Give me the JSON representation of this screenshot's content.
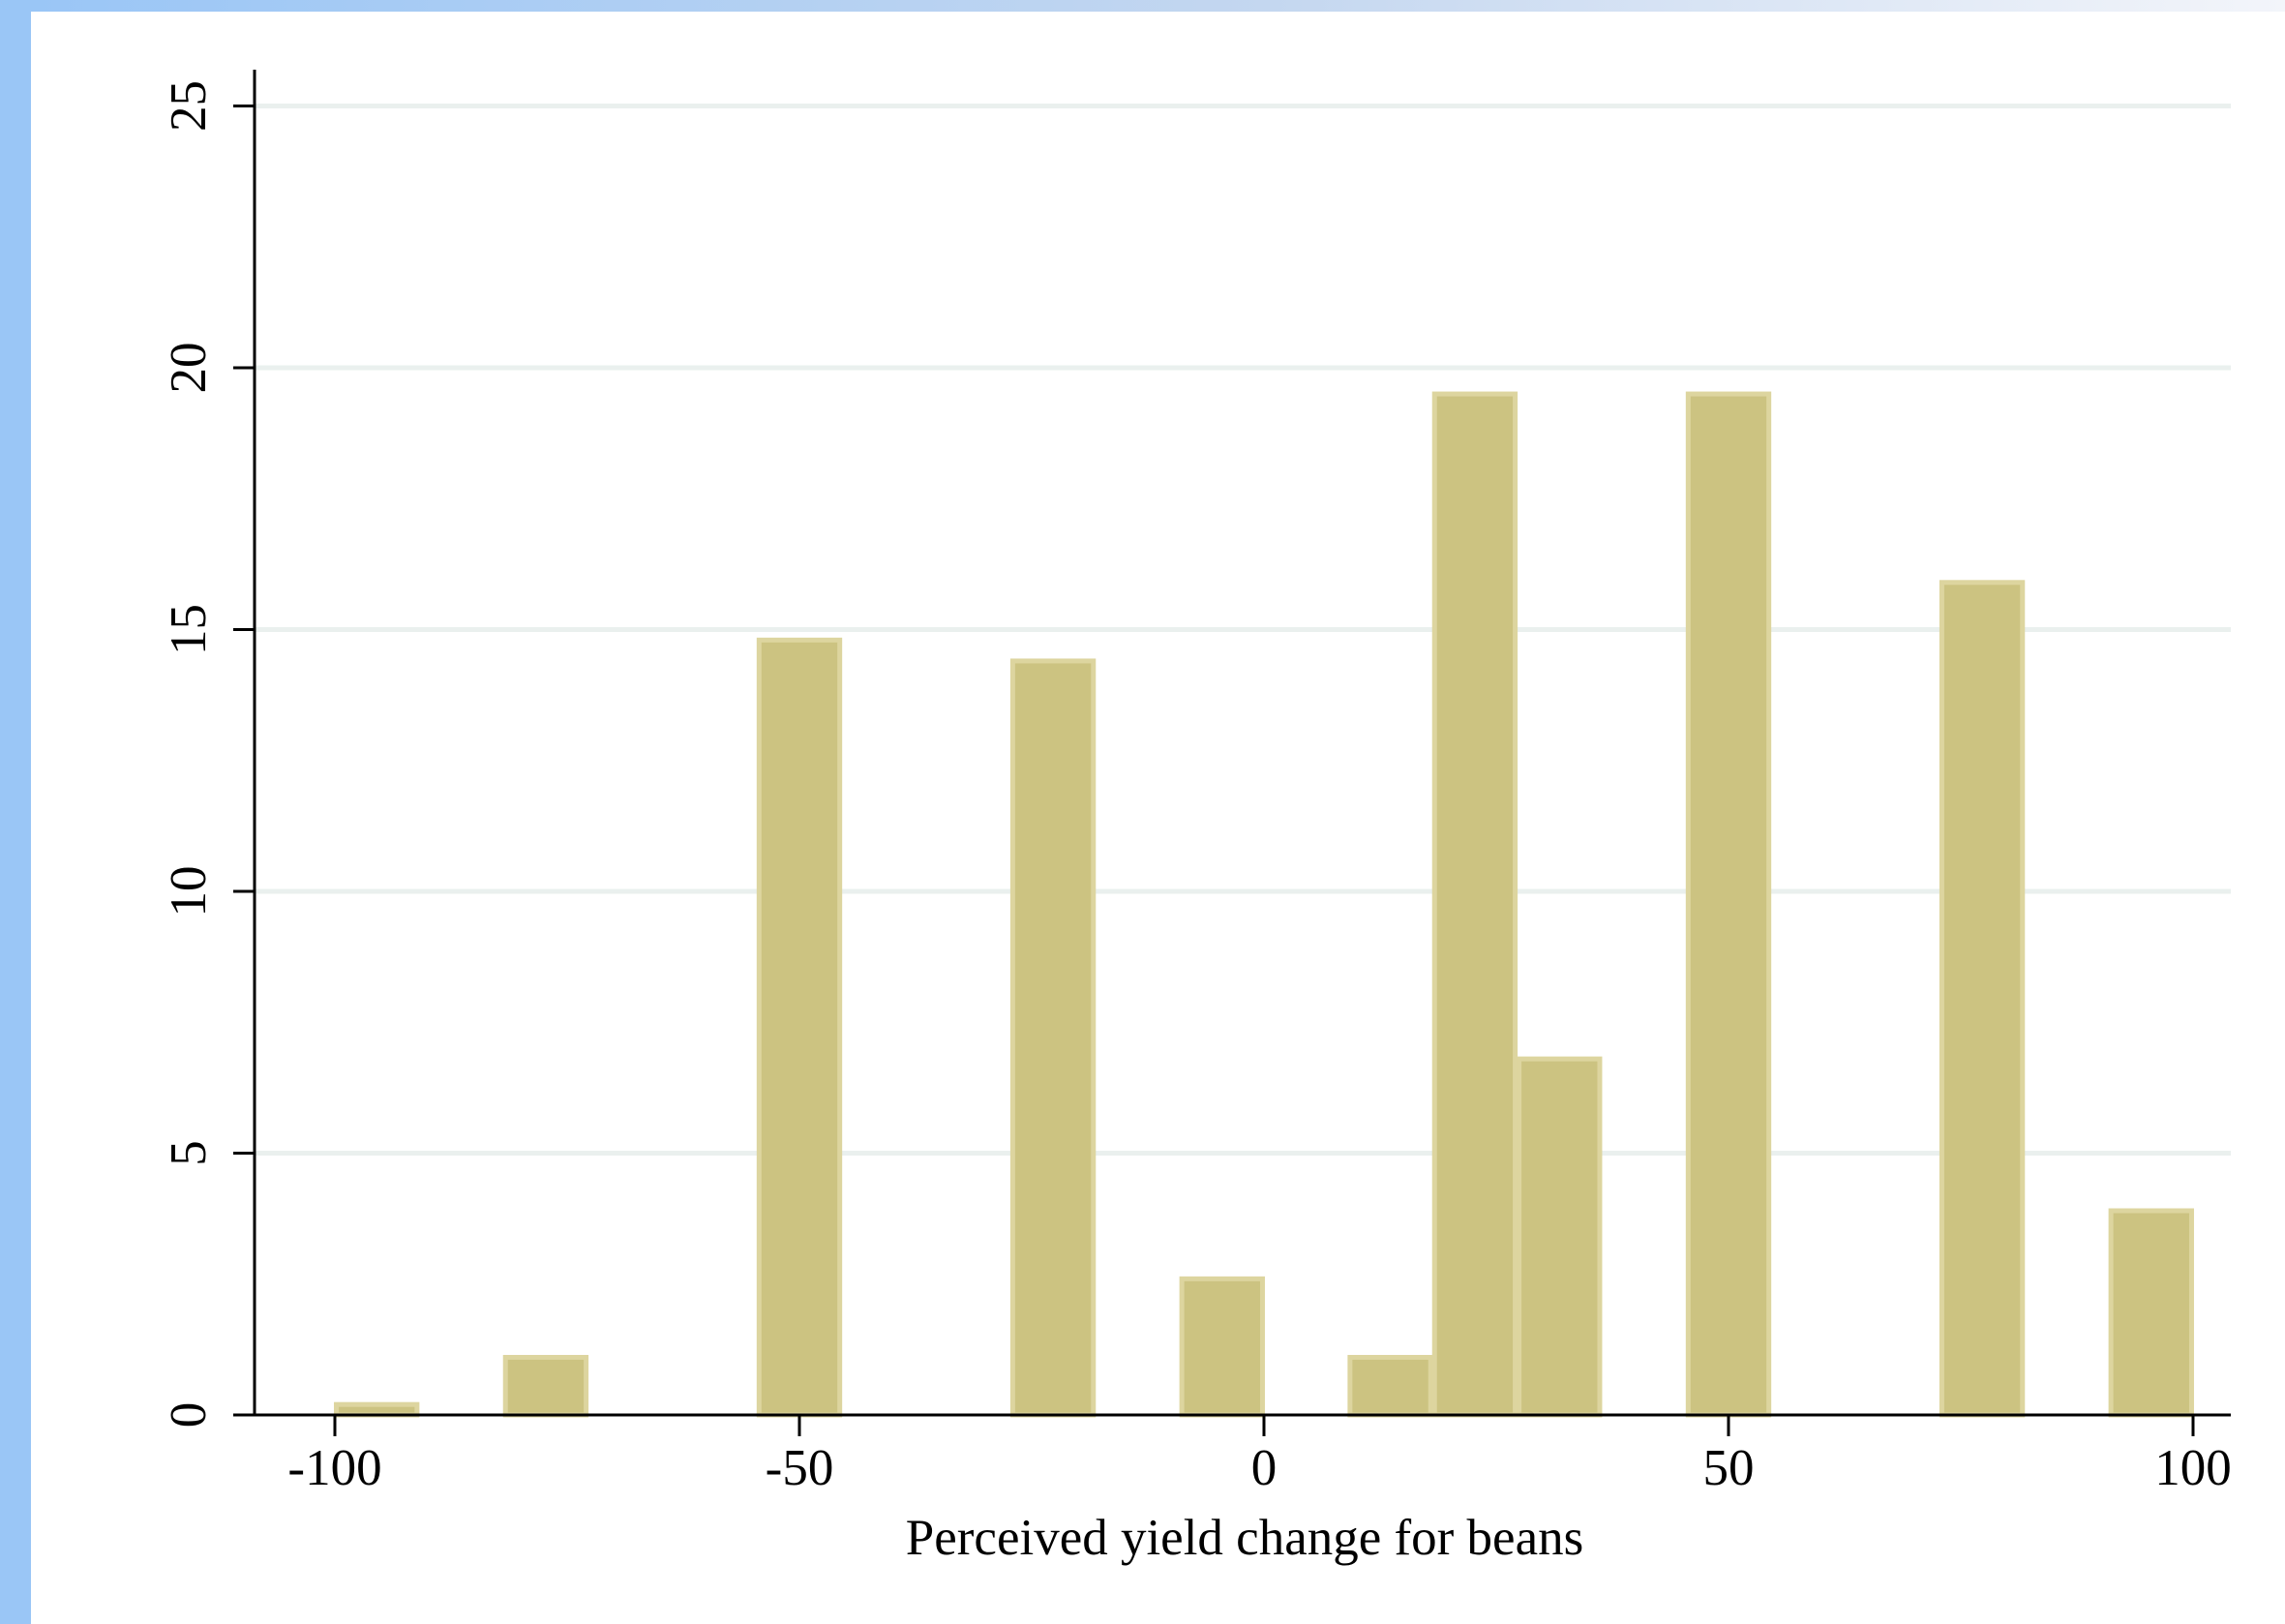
{
  "chart_data": {
    "type": "bar",
    "title": "",
    "xlabel": "Perceived yield change for beans",
    "ylabel": "",
    "xlim": [
      -108,
      104
    ],
    "ylim": [
      0,
      26
    ],
    "xticks": [
      -100,
      -50,
      0,
      50,
      100
    ],
    "yticks": [
      0,
      5,
      10,
      15,
      20,
      25
    ],
    "bin_width": 9.1,
    "grid": true,
    "legend": "none",
    "bars": [
      {
        "x": -95.5,
        "value": 0.2
      },
      {
        "x": -77.3,
        "value": 1.1
      },
      {
        "x": -50.0,
        "value": 14.8
      },
      {
        "x": -22.7,
        "value": 14.4
      },
      {
        "x": -4.5,
        "value": 2.6
      },
      {
        "x": 13.6,
        "value": 1.1
      },
      {
        "x": 22.7,
        "value": 19.5
      },
      {
        "x": 31.8,
        "value": 6.8
      },
      {
        "x": 50.0,
        "value": 19.5
      },
      {
        "x": 77.3,
        "value": 15.9
      },
      {
        "x": 95.5,
        "value": 3.9
      }
    ],
    "colors": {
      "bar_fill": "#ccc381",
      "bar_edge": "#ddd59f",
      "grid": "#eaf0ee",
      "axis": "#000000",
      "frame": "#9ac6f6"
    }
  }
}
